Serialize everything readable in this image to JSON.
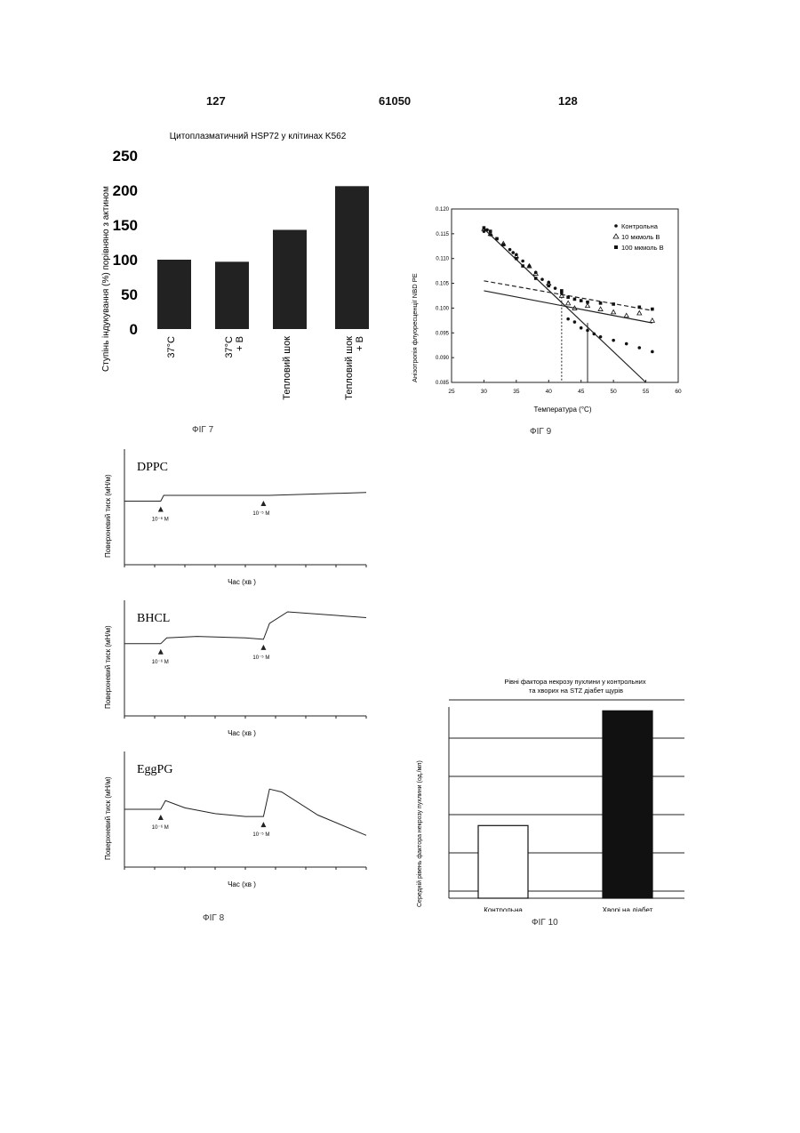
{
  "header": {
    "left_page": "127",
    "patent_no": "61050",
    "right_page": "128"
  },
  "fig7": {
    "caption": "ФІГ 7",
    "chart_data": {
      "type": "bar",
      "title": "Цитоплазматичний HSP72 у клітинах K562",
      "ylabel": "Ступінь індукування (%) порівняно з актином",
      "categories": [
        "37°C",
        "37°C + B",
        "Тепловий шок",
        "Тепловий шок + B"
      ],
      "values": [
        100,
        97,
        143,
        206
      ],
      "yticks": [
        "250",
        "200",
        "150",
        "100",
        "50",
        "0"
      ],
      "ylim": [
        0,
        250
      ],
      "color": "#222222"
    }
  },
  "fig9": {
    "caption": "ФІГ 9",
    "chart_data": {
      "type": "scatter",
      "xlabel": "Температура (°C)",
      "ylabel": "Анізотропія флуоресценції NBD PE",
      "xticks": [
        "25",
        "30",
        "35",
        "40",
        "45",
        "50",
        "55",
        "60"
      ],
      "yticks": [
        "0.120",
        "0.115",
        "0.110",
        "0.105",
        "0.100",
        "0.095",
        "0.090",
        "0.085"
      ],
      "xlim": [
        25,
        60
      ],
      "ylim": [
        0.085,
        0.12
      ],
      "series": [
        {
          "name": "Контрольна",
          "marker": "dot",
          "x": [
            30,
            30.5,
            31,
            32,
            33,
            34,
            34.5,
            35,
            36,
            37,
            38,
            39,
            40,
            41,
            42,
            43,
            44,
            45,
            46,
            47,
            48,
            50,
            52,
            54,
            56
          ],
          "y": [
            0.1155,
            0.1158,
            0.1148,
            0.114,
            0.1128,
            0.1118,
            0.1112,
            0.1108,
            0.1095,
            0.1085,
            0.1072,
            0.1058,
            0.1052,
            0.104,
            0.103,
            0.0978,
            0.0972,
            0.096,
            0.0955,
            0.0948,
            0.0942,
            0.0935,
            0.0928,
            0.092,
            0.0912
          ]
        },
        {
          "name": "10 мкмоль B",
          "marker": "triangle",
          "x": [
            30,
            31,
            33,
            35,
            37,
            38,
            40,
            42,
            43,
            44,
            46,
            48,
            50,
            52,
            54,
            56
          ],
          "y": [
            0.116,
            0.115,
            0.113,
            0.1105,
            0.1085,
            0.107,
            0.105,
            0.1025,
            0.101,
            0.1,
            0.1005,
            0.0998,
            0.0992,
            0.0985,
            0.099,
            0.0975
          ]
        },
        {
          "name": "100 мкмоль B",
          "marker": "square",
          "x": [
            30,
            31,
            32,
            33,
            35,
            36,
            38,
            40,
            42,
            43,
            44,
            45,
            46,
            48,
            50,
            54,
            56
          ],
          "y": [
            0.1162,
            0.1155,
            0.114,
            0.1128,
            0.11,
            0.1085,
            0.106,
            0.1045,
            0.1035,
            0.1022,
            0.1018,
            0.1015,
            0.1012,
            0.101,
            0.1008,
            0.1002,
            0.0998
          ]
        }
      ],
      "lines": [
        {
          "x": [
            30,
            55
          ],
          "y": [
            0.116,
            0.085
          ],
          "style": "solid"
        },
        {
          "x": [
            30,
            56
          ],
          "y": [
            0.1035,
            0.097
          ],
          "style": "solid"
        },
        {
          "x": [
            30,
            56
          ],
          "y": [
            0.1055,
            0.0995
          ],
          "style": "dashed"
        }
      ]
    }
  },
  "fig8": {
    "caption": "ФІГ 8",
    "panels": [
      {
        "title": "DPPC",
        "ylabel": "Поверхневий тиск (мН/м)",
        "xlabel": "Час (хв )",
        "inj1": "10⁻⁶ M",
        "inj2": "10⁻⁵ M",
        "chart_data": {
          "type": "line",
          "x": [
            0,
            6,
            6.5,
            23,
            24,
            40
          ],
          "y": [
            32,
            32,
            34,
            34,
            34,
            35
          ]
        }
      },
      {
        "title": "BHCL",
        "ylabel": "Поверхневий тиск (мН/м)",
        "xlabel": "Час (хв )",
        "inj1": "10⁻⁶ M",
        "inj2": "10⁻⁵ M",
        "chart_data": {
          "type": "line",
          "x": [
            0,
            6,
            7,
            12,
            20,
            23,
            24,
            27,
            40
          ],
          "y": [
            35,
            35,
            37,
            37.5,
            37,
            36.5,
            42,
            46,
            44
          ]
        }
      },
      {
        "title": "EggPG",
        "ylabel": "Поверхневий тиск (мН/м)",
        "xlabel": "Час (хв )",
        "inj1": "10⁻⁶ M",
        "inj2": "10⁻⁵ M",
        "chart_data": {
          "type": "line",
          "x": [
            0,
            6,
            6.8,
            10,
            15,
            20,
            23,
            24,
            26,
            32,
            40
          ],
          "y": [
            30,
            30,
            33,
            30.5,
            28.5,
            27.5,
            27.5,
            37,
            36,
            28,
            21
          ]
        }
      }
    ]
  },
  "fig10": {
    "caption": "ФІГ 10",
    "chart_data": {
      "type": "bar",
      "title": "Рівні фактора некрозу пухлини у контрольних та хворих на STZ діабет щурів",
      "ylabel": "Середній рівень фактора некрозу пухлини (од./мл)",
      "categories": [
        "Контрольна",
        "Хворі на діабет"
      ],
      "values": [
        190,
        490
      ],
      "ylim": [
        0,
        500
      ],
      "colors": [
        "#ffffff",
        "#111111"
      ]
    }
  }
}
